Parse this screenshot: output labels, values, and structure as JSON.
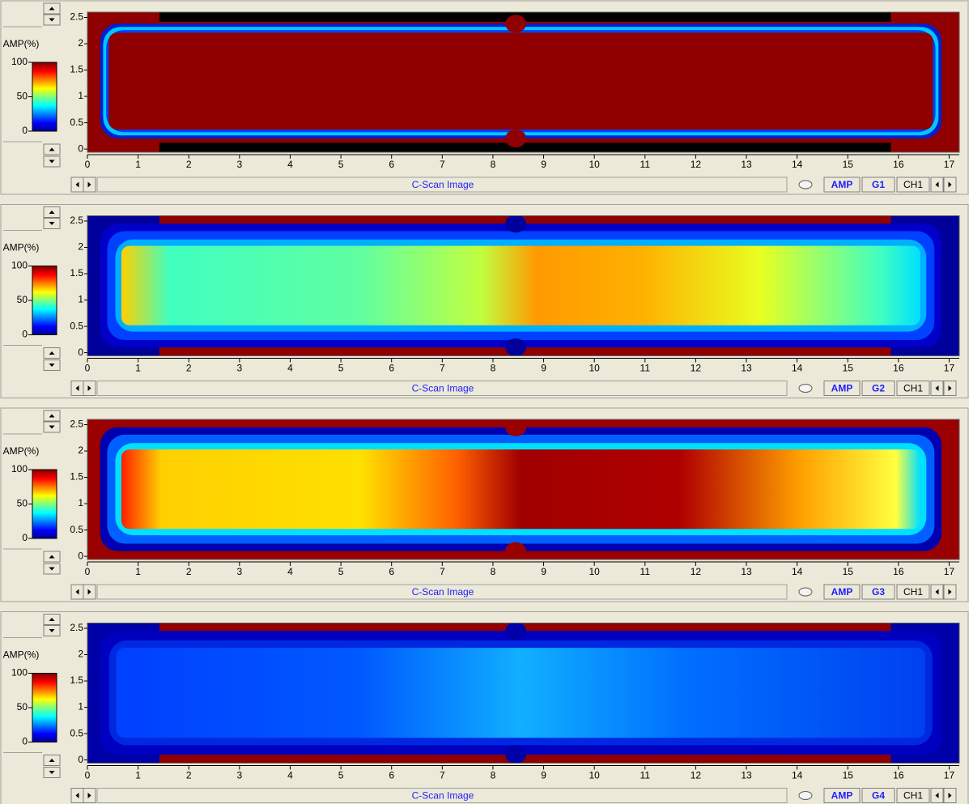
{
  "panels": [
    {
      "colorbar": {
        "label": "AMP(%)",
        "lim": [
          0,
          100
        ],
        "ticks": [
          0,
          50,
          100
        ]
      },
      "xlim": [
        0,
        17.2
      ],
      "xticks": [
        0,
        1,
        2,
        3,
        4,
        5,
        6,
        7,
        8,
        9,
        10,
        11,
        12,
        13,
        14,
        15,
        16,
        17
      ],
      "ylim": [
        -0.06,
        2.6
      ],
      "yticks": [
        0,
        0.5,
        1,
        1.5,
        2,
        2.5
      ],
      "caption": "C-Scan Image",
      "mode": "AMP",
      "gate": "G1",
      "channel": "CH1"
    },
    {
      "colorbar": {
        "label": "AMP(%)",
        "lim": [
          0,
          100
        ],
        "ticks": [
          0,
          50,
          100
        ]
      },
      "xlim": [
        0,
        17.2
      ],
      "xticks": [
        0,
        1,
        2,
        3,
        4,
        5,
        6,
        7,
        8,
        9,
        10,
        11,
        12,
        13,
        14,
        15,
        16,
        17
      ],
      "ylim": [
        -0.06,
        2.6
      ],
      "yticks": [
        0,
        0.5,
        1,
        1.5,
        2,
        2.5
      ],
      "caption": "C-Scan Image",
      "mode": "AMP",
      "gate": "G2",
      "channel": "CH1"
    },
    {
      "colorbar": {
        "label": "AMP(%)",
        "lim": [
          0,
          100
        ],
        "ticks": [
          0,
          50,
          100
        ]
      },
      "xlim": [
        0,
        17.2
      ],
      "xticks": [
        0,
        1,
        2,
        3,
        4,
        5,
        6,
        7,
        8,
        9,
        10,
        11,
        12,
        13,
        14,
        15,
        16,
        17
      ],
      "ylim": [
        -0.06,
        2.6
      ],
      "yticks": [
        0,
        0.5,
        1,
        1.5,
        2,
        2.5
      ],
      "caption": "C-Scan Image",
      "mode": "AMP",
      "gate": "G3",
      "channel": "CH1"
    },
    {
      "colorbar": {
        "label": "AMP(%)",
        "lim": [
          0,
          100
        ],
        "ticks": [
          0,
          50,
          100
        ]
      },
      "xlim": [
        0,
        17.2
      ],
      "xticks": [
        0,
        1,
        2,
        3,
        4,
        5,
        6,
        7,
        8,
        9,
        10,
        11,
        12,
        13,
        14,
        15,
        16,
        17
      ],
      "ylim": [
        -0.06,
        2.6
      ],
      "yticks": [
        0,
        0.5,
        1,
        1.5,
        2,
        2.5
      ],
      "caption": "C-Scan Image",
      "mode": "AMP",
      "gate": "G4",
      "channel": "CH1"
    }
  ]
}
